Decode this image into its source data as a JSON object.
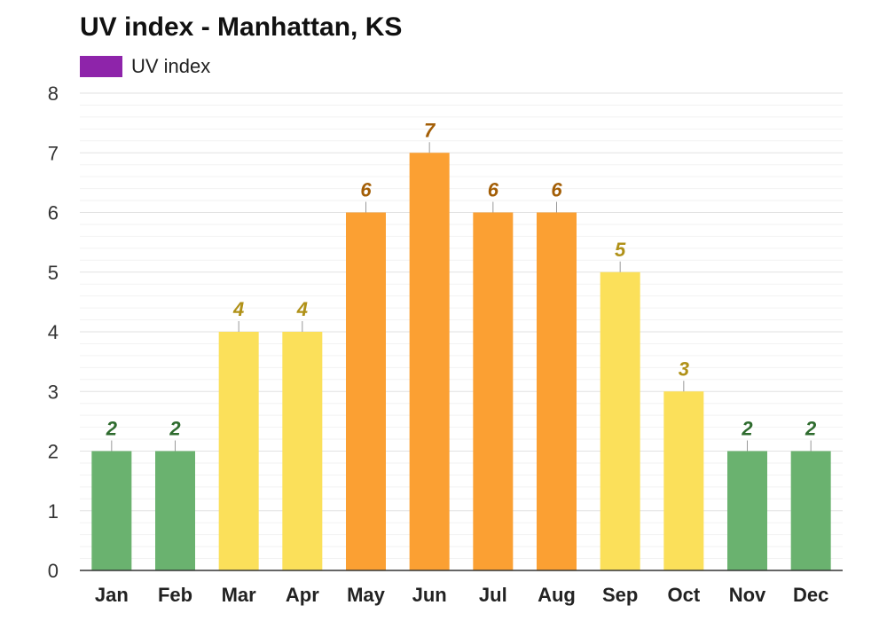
{
  "chart_data": {
    "type": "bar",
    "title": "UV index - Manhattan, KS",
    "xlabel": "",
    "ylabel": "",
    "ylim": [
      0,
      8
    ],
    "yticks": [
      0,
      1,
      2,
      3,
      4,
      5,
      6,
      7,
      8
    ],
    "grid": true,
    "legend_position": "top-left",
    "categories": [
      "Jan",
      "Feb",
      "Mar",
      "Apr",
      "May",
      "Jun",
      "Jul",
      "Aug",
      "Sep",
      "Oct",
      "Nov",
      "Dec"
    ],
    "series": [
      {
        "name": "UV index",
        "color": "#8e24aa",
        "values": [
          2,
          2,
          4,
          4,
          6,
          7,
          6,
          6,
          5,
          3,
          2,
          2
        ]
      }
    ],
    "value_labels": [
      "2",
      "2",
      "4",
      "4",
      "6",
      "7",
      "6",
      "6",
      "5",
      "3",
      "2",
      "2"
    ],
    "level_colors": {
      "low": {
        "bar": "#6ab26f",
        "label": "#2e6b2e"
      },
      "moderate": {
        "bar": "#fbe05a",
        "label": "#b09118"
      },
      "high": {
        "bar": "#fba033",
        "label": "#a35e06"
      }
    },
    "axis_color": "#333333",
    "grid_color": "#e2e2e2",
    "minor_grid_color": "#f2f2f2"
  }
}
